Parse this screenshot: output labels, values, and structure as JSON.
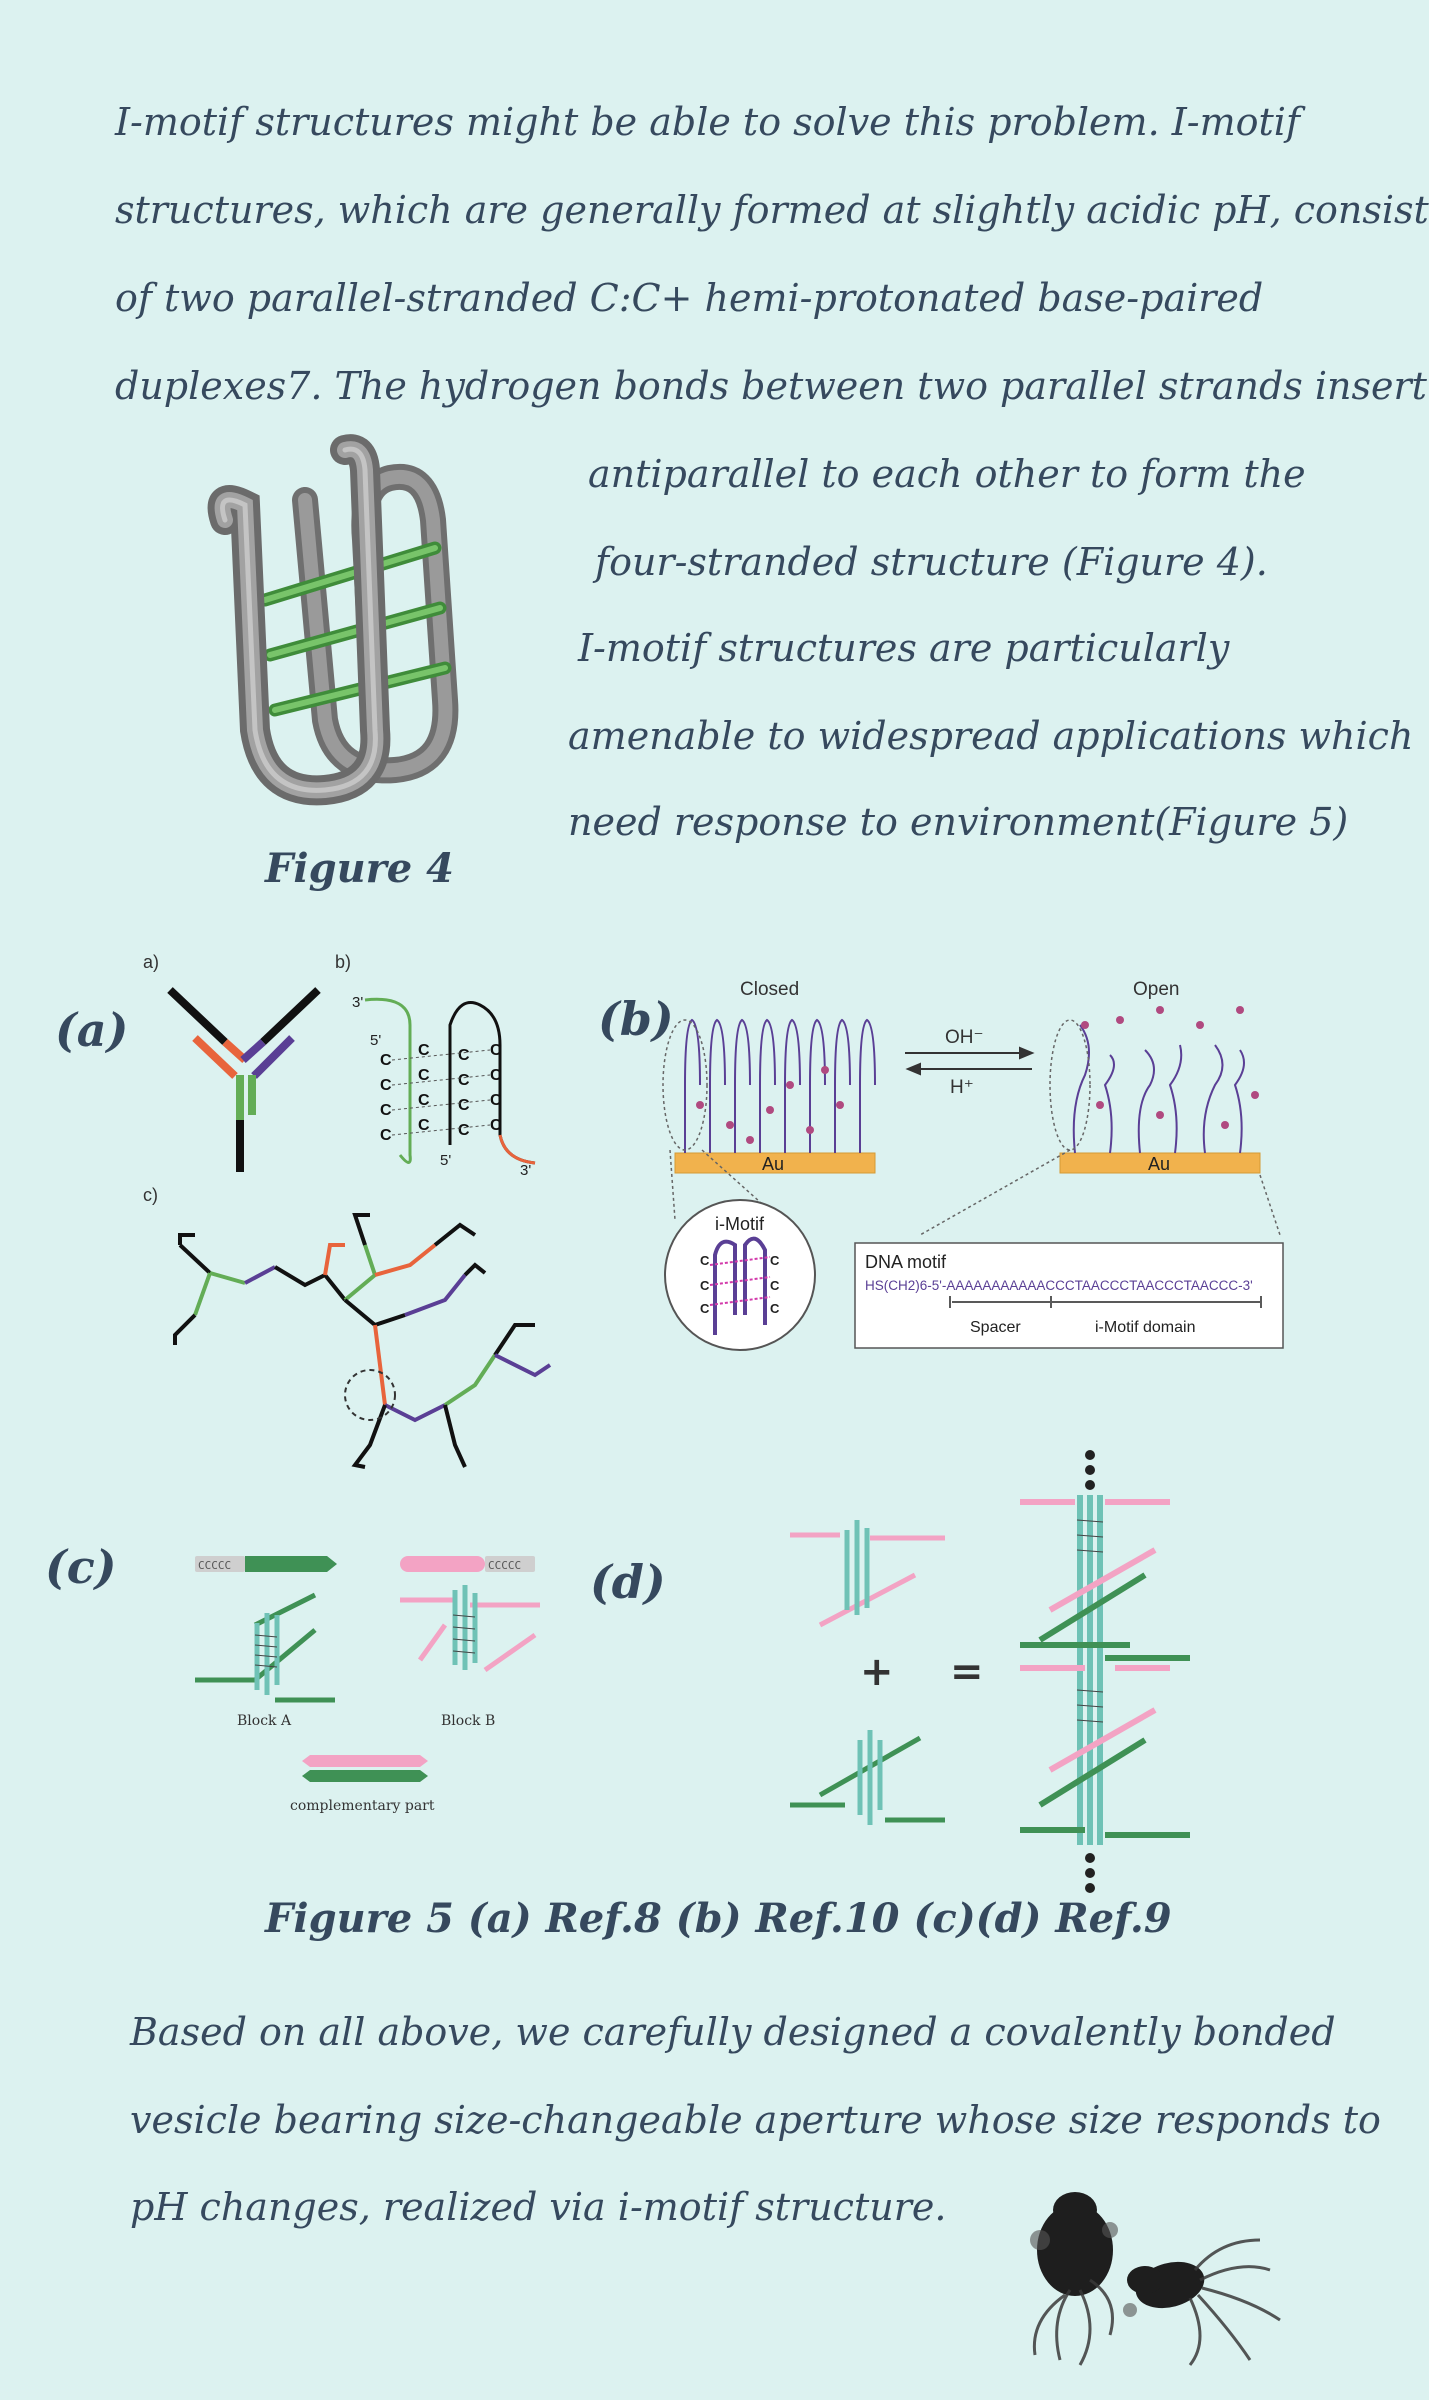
{
  "intro": {
    "lines": [
      "I-motif structures might be able to solve this problem. I-motif",
      "structures, which are generally formed at slightly acidic pH, consist",
      "of two parallel-stranded C:C+ hemi-protonated base-paired",
      "duplexes7. The hydrogen bonds between two parallel strands insert"
    ],
    "side_lines": [
      "antiparallel to each other to form the",
      "four-stranded structure (Figure 4).",
      "I-motif structures are particularly",
      "amenable to widespread applications which",
      "need  response to environment(Figure 5)"
    ]
  },
  "figure4": {
    "caption": "Figure 4"
  },
  "figure5": {
    "panel_labels": [
      "(a)",
      "(b)",
      "(c)",
      "(d)"
    ],
    "panel_a": {
      "sublabels": [
        "a)",
        "b)",
        "c)"
      ],
      "strand_ends": [
        "3'",
        "5'",
        "5'",
        "3'"
      ],
      "bases": "C"
    },
    "panel_b": {
      "closed": "Closed",
      "open": "Open",
      "oh": "OH⁻",
      "h": "H⁺",
      "au": "Au",
      "imotif": "i-Motif",
      "dna_motif": "DNA motif",
      "sequence": "HS(CH2)6-5'-AAAAAAAAAAACCCTAACCCTAACCCTAACCC-3'",
      "spacer": "Spacer",
      "domain": "i-Motif domain"
    },
    "panel_c": {
      "block_a": "Block A",
      "block_b": "Block B",
      "comp": "complementary part",
      "ccccc": "CCCCC"
    },
    "panel_d": {
      "plus": "+",
      "equals": "="
    },
    "caption": "Figure 5  (a) Ref.8 (b) Ref.10 (c)(d) Ref.9"
  },
  "conclusion": {
    "lines": [
      "Based on all above, we carefully designed a covalently bonded",
      "vesicle bearing size-changeable aperture whose size responds to",
      "pH changes, realized via i-motif structure."
    ]
  },
  "colors": {
    "background": "#dcf2f0",
    "text": "#36495e",
    "green": "#63ad56",
    "pink": "#f2a4c4",
    "purple": "#5a3f95",
    "orange": "#e8643c"
  }
}
